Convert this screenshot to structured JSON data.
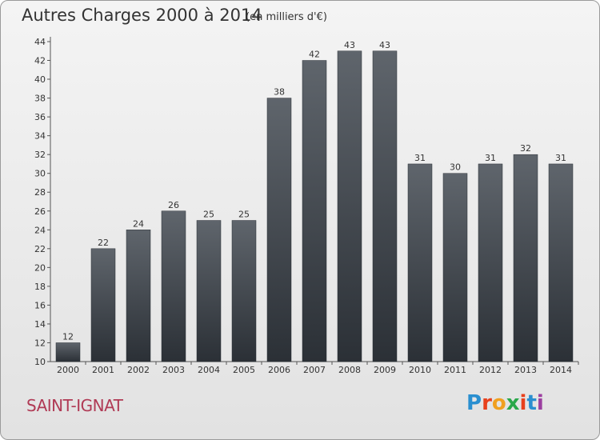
{
  "title": "Autres Charges 2000 à 2014",
  "subtitle": "(en milliers d'€)",
  "commune": "SAINT-IGNAT",
  "logo": {
    "letters": [
      "P",
      "r",
      "o",
      "x",
      "i",
      "t",
      "i"
    ],
    "colors": [
      "#2a8fd0",
      "#e8401c",
      "#f0a020",
      "#2aa84a",
      "#e8401c",
      "#2a8fd0",
      "#9c3fa0"
    ]
  },
  "chart_data": {
    "type": "bar",
    "title": "Autres Charges 2000 à 2014",
    "subtitle": "(en milliers d'€)",
    "categories": [
      "2000",
      "2001",
      "2002",
      "2003",
      "2004",
      "2005",
      "2006",
      "2007",
      "2008",
      "2009",
      "2010",
      "2011",
      "2012",
      "2013",
      "2014"
    ],
    "values": [
      12,
      22,
      24,
      26,
      25,
      25,
      38,
      42,
      43,
      43,
      31,
      30,
      31,
      32,
      31
    ],
    "data_labels": [
      "12",
      "22",
      "24",
      "26",
      "25",
      "25",
      "38",
      "42",
      "43",
      "43",
      "31",
      "30",
      "31",
      "32",
      "31"
    ],
    "ylim": [
      10,
      44
    ],
    "yticks": [
      10,
      12,
      14,
      16,
      18,
      20,
      22,
      24,
      26,
      28,
      30,
      32,
      34,
      36,
      38,
      40,
      42,
      44
    ],
    "grid": false,
    "colors": {
      "bar_top": "#5f656c",
      "bar_bottom": "#2b3036",
      "axis": "#555555"
    }
  }
}
